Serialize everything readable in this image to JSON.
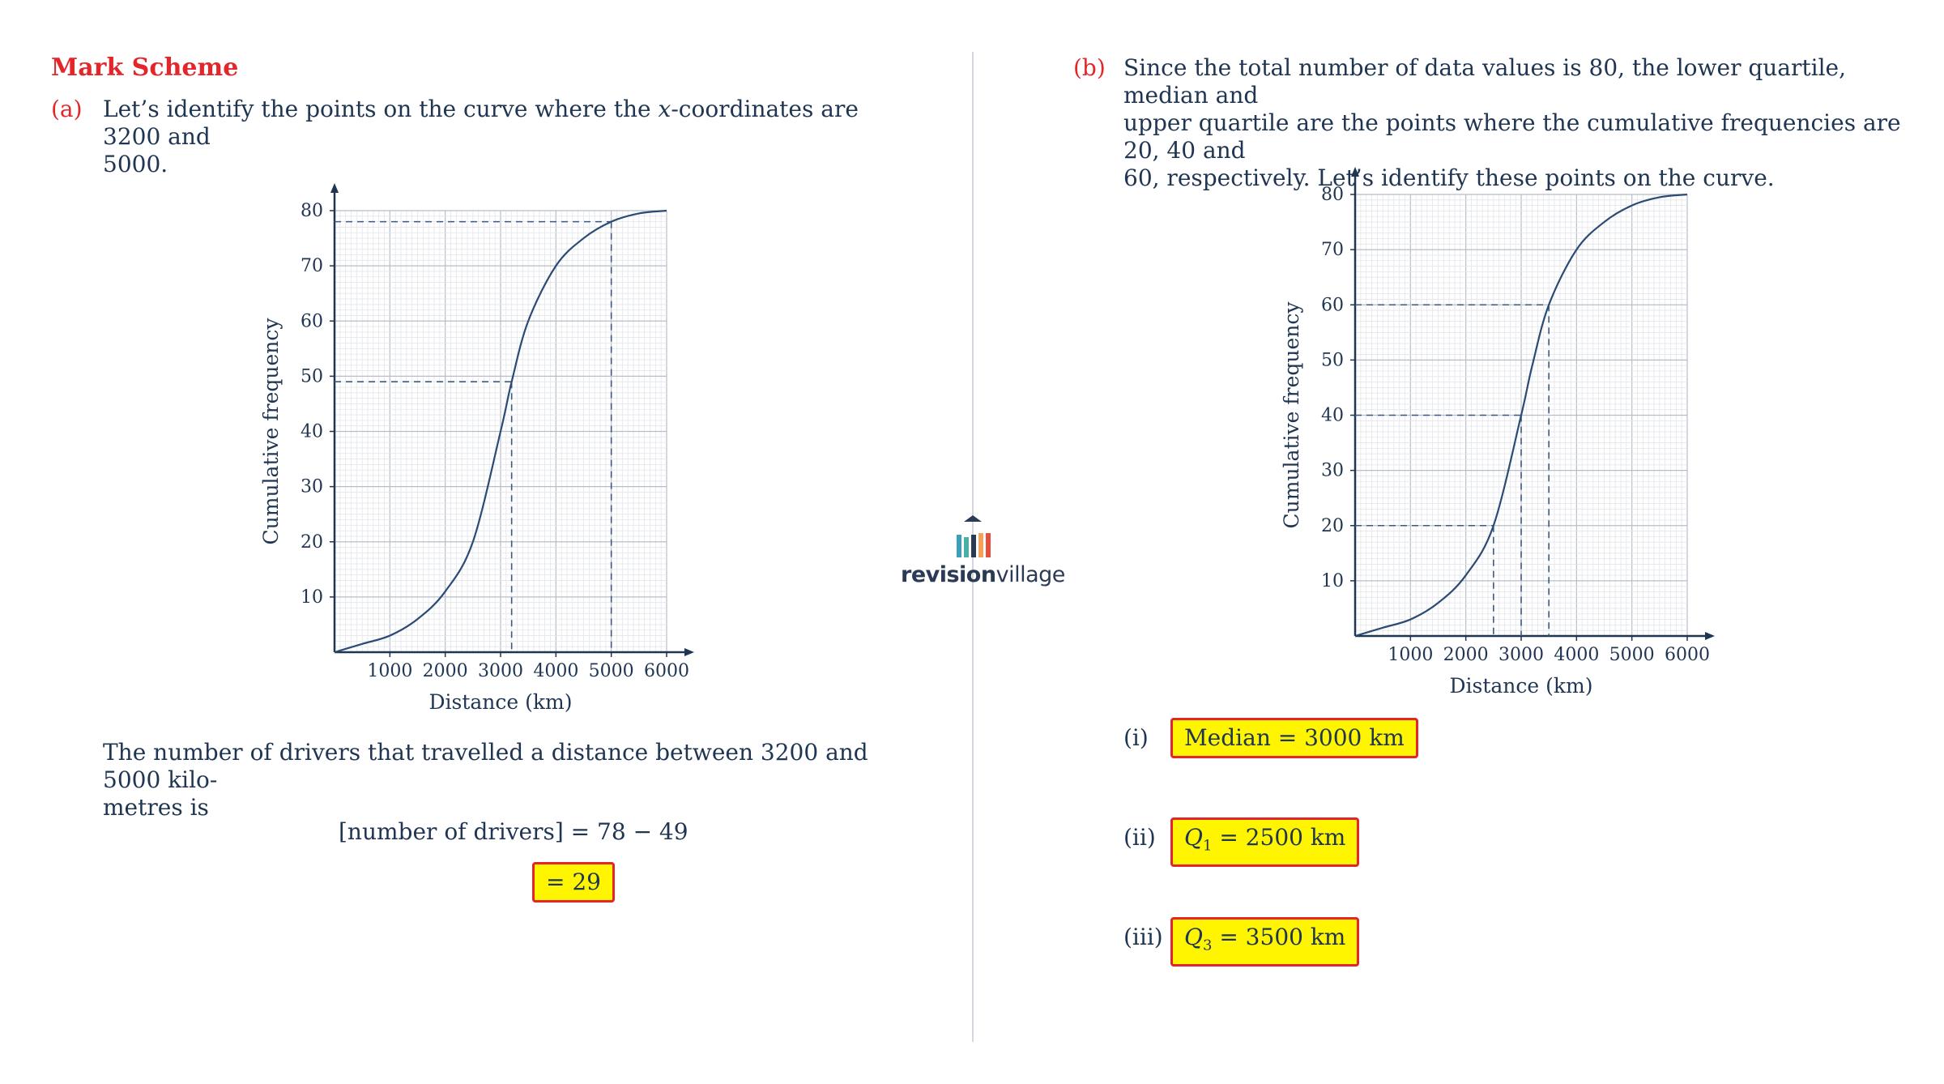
{
  "heading": "Mark Scheme",
  "part_a": {
    "label": "(a)",
    "intro_line1_pre": "Let’s identify the points on the curve where the ",
    "intro_var": "x",
    "intro_line1_post": "-coordinates are 3200 and",
    "intro_line2": "5000.",
    "conclusion_line1": "The number of drivers that travelled a distance between 3200 and 5000 kilo-",
    "conclusion_line2": "metres is",
    "equation": "[number of drivers] = 78 − 49",
    "answer": "= 29"
  },
  "part_b": {
    "label": "(b)",
    "intro_line1": "Since the total number of data values is 80, the lower quartile, median and",
    "intro_line2": "upper quartile are the points where the cumulative frequencies are 20, 40 and",
    "intro_line3": "60, respectively. Let’s identify these points on the curve.",
    "answers": [
      {
        "label": "(i)",
        "var": "",
        "sub": "",
        "text": "Median = 3000 km"
      },
      {
        "label": "(ii)",
        "var": "Q",
        "sub": "1",
        "text": " = 2500 km"
      },
      {
        "label": "(iii)",
        "var": "Q",
        "sub": "3",
        "text": " = 3500 km"
      }
    ]
  },
  "logo": {
    "bold": "revision",
    "light": "village"
  },
  "colors": {
    "accent_red": "#e3262a",
    "highlight": "#fff500",
    "ink": "#1f3552",
    "curve": "#2b4a74"
  },
  "chart_data": [
    {
      "type": "line",
      "title": "",
      "xlabel": "Distance (km)",
      "ylabel": "Cumulative frequency",
      "xlim": [
        0,
        6000
      ],
      "ylim": [
        0,
        80
      ],
      "xticks": [
        "1000",
        "2000",
        "3000",
        "4000",
        "5000",
        "6000"
      ],
      "yticks": [
        "10",
        "20",
        "30",
        "40",
        "50",
        "60",
        "70",
        "80"
      ],
      "grid": true,
      "x": [
        0,
        500,
        1000,
        1500,
        2000,
        2500,
        3000,
        3200,
        3500,
        4000,
        4500,
        5000,
        5500,
        6000
      ],
      "y": [
        0,
        1.5,
        3,
        6,
        11,
        20,
        40,
        49,
        60,
        70,
        75,
        78,
        79.5,
        80
      ],
      "reference_points": [
        {
          "x": 3200,
          "y": 49
        },
        {
          "x": 5000,
          "y": 78
        }
      ]
    },
    {
      "type": "line",
      "title": "",
      "xlabel": "Distance (km)",
      "ylabel": "Cumulative frequency",
      "xlim": [
        0,
        6000
      ],
      "ylim": [
        0,
        80
      ],
      "xticks": [
        "1000",
        "2000",
        "3000",
        "4000",
        "5000",
        "6000"
      ],
      "yticks": [
        "10",
        "20",
        "30",
        "40",
        "50",
        "60",
        "70",
        "80"
      ],
      "grid": true,
      "x": [
        0,
        500,
        1000,
        1500,
        2000,
        2500,
        3000,
        3200,
        3500,
        4000,
        4500,
        5000,
        5500,
        6000
      ],
      "y": [
        0,
        1.5,
        3,
        6,
        11,
        20,
        40,
        49,
        60,
        70,
        75,
        78,
        79.5,
        80
      ],
      "reference_points": [
        {
          "x": 2500,
          "y": 20
        },
        {
          "x": 3000,
          "y": 40
        },
        {
          "x": 3500,
          "y": 60
        }
      ]
    }
  ]
}
